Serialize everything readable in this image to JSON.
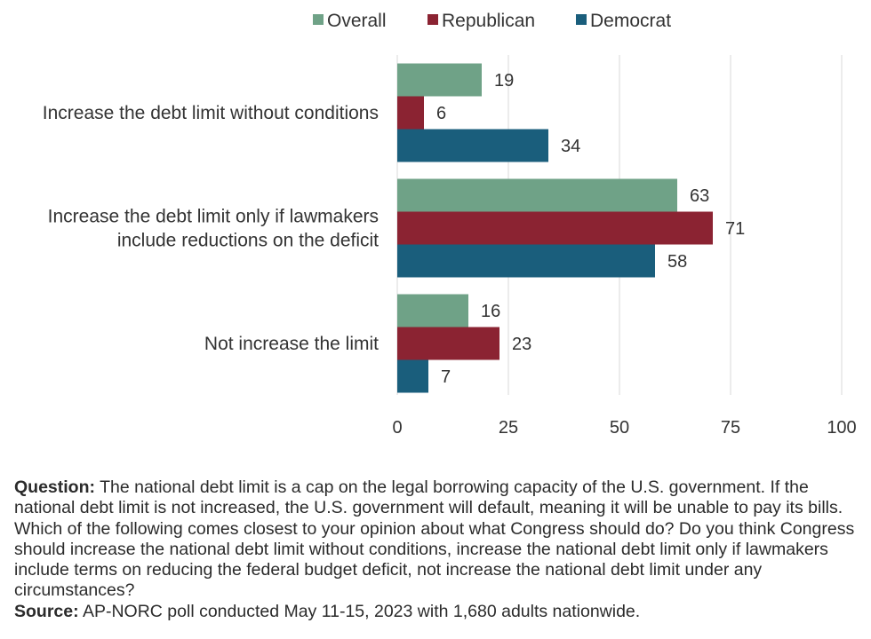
{
  "chart_data": {
    "type": "bar",
    "orientation": "horizontal",
    "categories": [
      [
        "Increase the debt limit without conditions"
      ],
      [
        "Increase the debt limit only if lawmakers",
        "include reductions on the deficit"
      ],
      [
        "Not increase the limit"
      ]
    ],
    "series": [
      {
        "name": "Overall",
        "color": "#6fa287",
        "values": [
          19,
          63,
          16
        ]
      },
      {
        "name": "Republican",
        "color": "#8b2332",
        "values": [
          6,
          71,
          23
        ]
      },
      {
        "name": "Democrat",
        "color": "#1a5e7c",
        "values": [
          34,
          58,
          7
        ]
      }
    ],
    "xlim": [
      0,
      100
    ],
    "xticks": [
      0,
      25,
      50,
      75,
      100
    ],
    "grid": true,
    "legend_position": "top",
    "data_labels": true
  },
  "notes": {
    "question_label": "Question:",
    "question_text": "The national debt limit is a cap on the legal borrowing capacity of the U.S. government. If the national debt limit is not increased, the U.S. government will default, meaning it will be unable to pay its bills. Which of the following comes closest to your opinion about what Congress should do? Do you think Congress should increase the national debt limit without conditions, increase the national debt limit only if lawmakers include terms on reducing the federal budget deficit, not increase the national debt limit under any circumstances?",
    "source_label": "Source:",
    "source_text": "AP-NORC poll conducted May 11-15, 2023 with 1,680 adults nationwide."
  }
}
